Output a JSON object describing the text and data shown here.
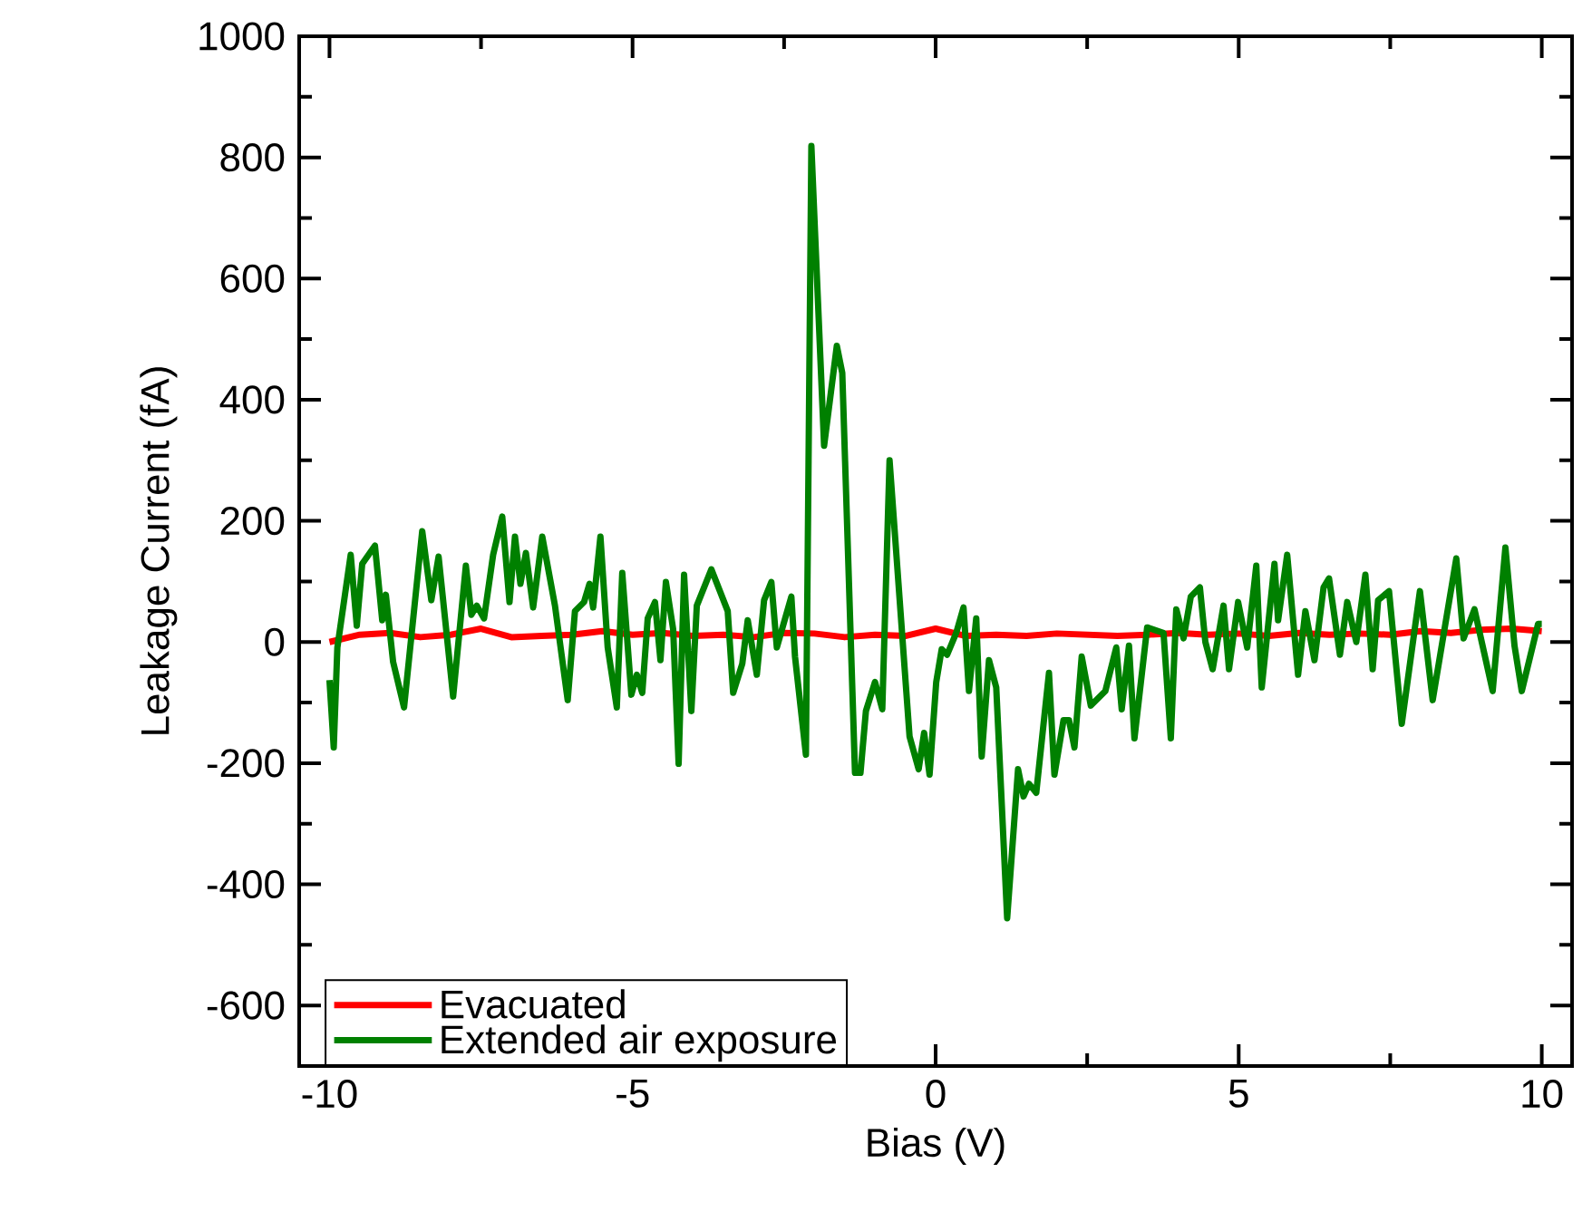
{
  "chart_data": {
    "type": "line",
    "xlabel": "Bias (V)",
    "ylabel": "Leakage Current (fA)",
    "xlim": [
      -10.5,
      10.5
    ],
    "ylim": [
      -700,
      1000
    ],
    "xticks": [
      -10,
      -5,
      0,
      5,
      10
    ],
    "yticks": [
      -600,
      -400,
      -200,
      0,
      200,
      400,
      600,
      800,
      1000
    ],
    "legend": "bottom left",
    "grid": false,
    "marker": "none",
    "line_style": "solid",
    "series": [
      {
        "name": "Evacuated",
        "color": "#ff0000",
        "x": [
          -10,
          -9.5,
          -9,
          -8.5,
          -8,
          -7.5,
          -7,
          -6.5,
          -6,
          -5.5,
          -5,
          -4.5,
          -4,
          -3.5,
          -3,
          -2.5,
          -2,
          -1.5,
          -1,
          -0.5,
          0,
          0.5,
          1,
          1.5,
          2,
          2.5,
          3,
          3.5,
          4,
          4.5,
          5,
          5.5,
          6,
          6.5,
          7,
          7.5,
          8,
          8.5,
          9,
          9.5,
          10
        ],
        "values": [
          0,
          12,
          15,
          8,
          12,
          22,
          8,
          10,
          12,
          18,
          12,
          15,
          10,
          12,
          8,
          15,
          14,
          8,
          12,
          10,
          22,
          10,
          12,
          10,
          14,
          12,
          10,
          12,
          15,
          12,
          14,
          10,
          15,
          12,
          14,
          12,
          18,
          15,
          20,
          22,
          18
        ]
      },
      {
        "name": "Extended air exposure",
        "color": "#008000",
        "x": [
          -10,
          -9.93,
          -9.87,
          -9.65,
          -9.55,
          -9.46,
          -9.25,
          -9.13,
          -9.07,
          -8.95,
          -8.77,
          -8.47,
          -8.32,
          -8.2,
          -7.96,
          -7.75,
          -7.66,
          -7.57,
          -7.45,
          -7.3,
          -7.15,
          -7.03,
          -6.94,
          -6.85,
          -6.76,
          -6.64,
          -6.49,
          -6.28,
          -6.07,
          -5.95,
          -5.8,
          -5.71,
          -5.65,
          -5.53,
          -5.41,
          -5.26,
          -5.17,
          -5.02,
          -4.93,
          -4.84,
          -4.75,
          -4.63,
          -4.54,
          -4.45,
          -4.33,
          -4.24,
          -4.15,
          -4.03,
          -3.94,
          -3.7,
          -3.43,
          -3.34,
          -3.19,
          -3.1,
          -2.95,
          -2.83,
          -2.71,
          -2.62,
          -2.38,
          -2.32,
          -2.14,
          -2.05,
          -1.84,
          -1.63,
          -1.54,
          -1.33,
          -1.24,
          -1.15,
          -1.0,
          -0.88,
          -0.76,
          -0.43,
          -0.28,
          -0.19,
          -0.1,
          0.01,
          0.1,
          0.19,
          0.34,
          0.46,
          0.55,
          0.67,
          0.76,
          0.88,
          1.0,
          1.18,
          1.36,
          1.45,
          1.54,
          1.66,
          1.87,
          1.96,
          2.11,
          2.2,
          2.29,
          2.41,
          2.56,
          2.8,
          2.98,
          3.07,
          3.19,
          3.28,
          3.49,
          3.76,
          3.88,
          3.97,
          4.09,
          4.21,
          4.36,
          4.45,
          4.57,
          4.75,
          4.84,
          4.99,
          5.14,
          5.29,
          5.38,
          5.59,
          5.65,
          5.8,
          5.98,
          6.1,
          6.25,
          6.4,
          6.49,
          6.67,
          6.79,
          6.94,
          7.09,
          7.21,
          7.3,
          7.48,
          7.69,
          7.99,
          8.2,
          8.59,
          8.71,
          8.89,
          9.19,
          9.4,
          9.55,
          9.67,
          9.94,
          10
        ],
        "values": [
          -63,
          -174,
          -9,
          144,
          27,
          129,
          159,
          36,
          78,
          -33,
          -108,
          183,
          69,
          141,
          -90,
          126,
          45,
          60,
          39,
          144,
          207,
          66,
          174,
          96,
          147,
          57,
          174,
          60,
          -96,
          51,
          66,
          96,
          57,
          174,
          -9,
          -108,
          114,
          -87,
          -54,
          -84,
          39,
          66,
          -30,
          99,
          21,
          -201,
          111,
          -114,
          60,
          120,
          51,
          -84,
          -36,
          36,
          -54,
          69,
          99,
          -9,
          75,
          -24,
          -186,
          819,
          324,
          489,
          444,
          -216,
          -216,
          -114,
          -66,
          -111,
          300,
          -156,
          -210,
          -150,
          -219,
          -66,
          -12,
          -21,
          15,
          57,
          -81,
          39,
          -189,
          -30,
          -75,
          -456,
          -210,
          -255,
          -234,
          -249,
          -51,
          -219,
          -129,
          -129,
          -174,
          -24,
          -105,
          -81,
          -9,
          -111,
          -6,
          -159,
          24,
          15,
          -159,
          54,
          6,
          75,
          90,
          0,
          -45,
          60,
          -45,
          66,
          -9,
          126,
          -75,
          129,
          36,
          144,
          -54,
          51,
          -30,
          90,
          105,
          -21,
          66,
          0,
          111,
          -45,
          69,
          84,
          -135,
          84,
          -96,
          138,
          6,
          54,
          -81,
          156,
          -6,
          -81,
          30,
          30
        ]
      }
    ]
  }
}
